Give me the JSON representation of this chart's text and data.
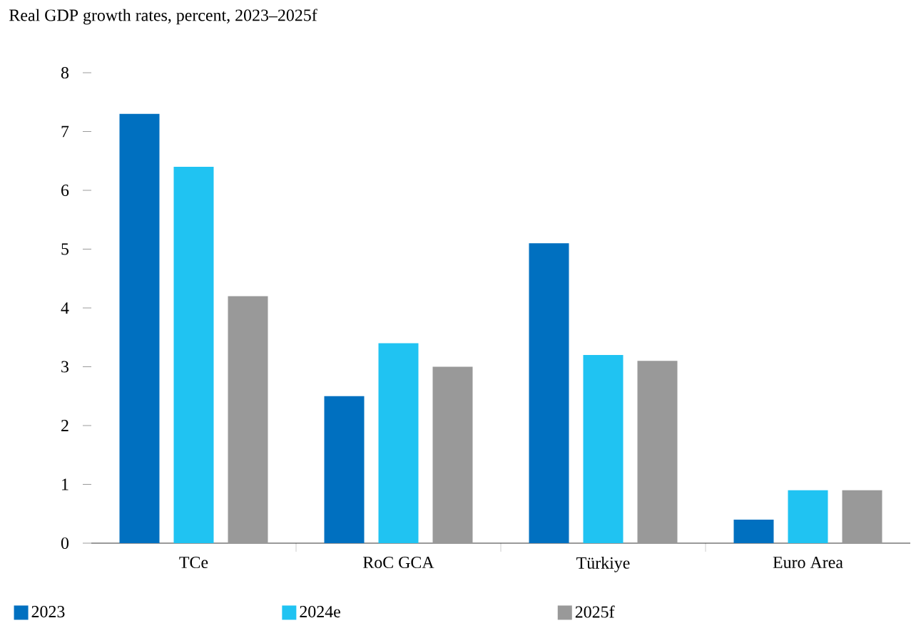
{
  "chart_data": {
    "type": "bar",
    "title": "Real GDP growth rates, percent, 2023–2025f",
    "categories": [
      "TCe",
      "RoC GCA",
      "Türkiye",
      "Euro Area"
    ],
    "series": [
      {
        "name": "2023",
        "color": "#0070c0",
        "values": [
          7.3,
          2.5,
          5.1,
          0.4
        ]
      },
      {
        "name": "2024e",
        "color": "#20c3f2",
        "values": [
          6.4,
          3.4,
          3.2,
          0.9
        ]
      },
      {
        "name": "2025f",
        "color": "#999999",
        "values": [
          4.2,
          3.0,
          3.1,
          0.9
        ]
      }
    ],
    "ylim": [
      0,
      8
    ],
    "yticks": [
      0,
      1,
      2,
      3,
      4,
      5,
      6,
      7,
      8
    ],
    "legend": "bottom"
  }
}
